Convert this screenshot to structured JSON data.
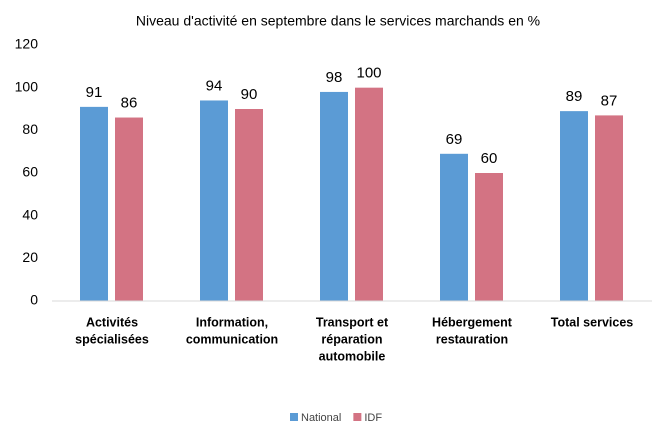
{
  "chart_data": {
    "type": "bar",
    "title": "Niveau d'activité en septembre dans le services marchands en %",
    "categories": [
      [
        "Activités",
        "spécialisées"
      ],
      [
        "Information,",
        "communication"
      ],
      [
        "Transport et",
        "réparation",
        "automobile"
      ],
      [
        "Hébergement",
        "restauration"
      ],
      [
        "Total services"
      ]
    ],
    "series": [
      {
        "name": "National",
        "color": "#5b9bd5",
        "values": [
          91,
          94,
          98,
          69,
          89
        ]
      },
      {
        "name": "IDF",
        "color": "#d37383",
        "values": [
          86,
          90,
          100,
          60,
          87
        ]
      }
    ],
    "ylim": [
      0,
      120
    ],
    "yticks": [
      0,
      20,
      40,
      60,
      80,
      100,
      120
    ],
    "grid": false,
    "legend": "bottom"
  }
}
